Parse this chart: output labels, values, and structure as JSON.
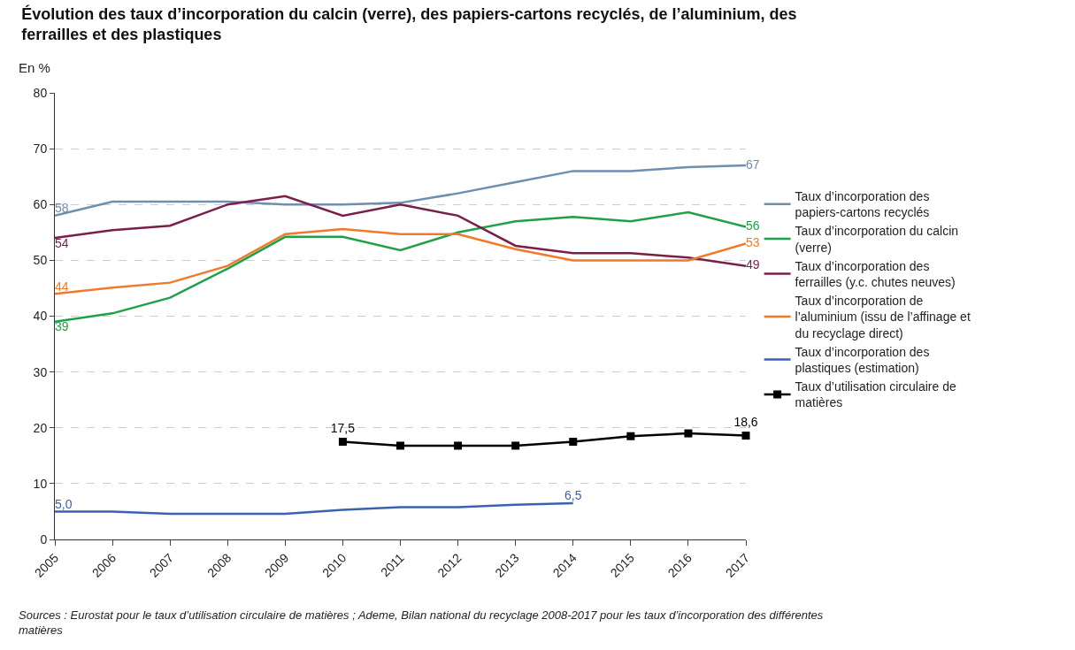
{
  "chart_data": {
    "type": "line",
    "title": "Évolution des taux d’incorporation du calcin (verre), des papiers-cartons recyclés, de l’aluminium, des ferrailles et des plastiques",
    "ylabel": "En %",
    "x": [
      2005,
      2006,
      2007,
      2008,
      2009,
      2010,
      2011,
      2012,
      2013,
      2014,
      2015,
      2016,
      2017
    ],
    "xlim": [
      2005,
      2017
    ],
    "xticks": [
      2005,
      2006,
      2007,
      2008,
      2009,
      2010,
      2011,
      2012,
      2013,
      2014,
      2015,
      2016,
      2017
    ],
    "ylim": [
      0,
      80
    ],
    "yticks": [
      0,
      10,
      20,
      30,
      40,
      50,
      60,
      70,
      80
    ],
    "grid": "y",
    "legend": "right",
    "line_style": "solid",
    "series": [
      {
        "name": "Taux d’incorporation des papiers-cartons recyclés",
        "color": "#6e8fb0",
        "marker": "none",
        "values": [
          58,
          60.5,
          60.5,
          60.5,
          60,
          60,
          60.3,
          62,
          64,
          66,
          66,
          66.7,
          67
        ],
        "value_labels": [
          "58",
          null,
          null,
          null,
          null,
          null,
          null,
          null,
          null,
          null,
          null,
          null,
          "67"
        ]
      },
      {
        "name": "Taux d’incorporation du calcin (verre)",
        "color": "#1fa049",
        "marker": "none",
        "values": [
          39,
          40.5,
          43.3,
          48.5,
          54.2,
          54.2,
          51.8,
          55,
          57,
          57.8,
          57,
          58.6,
          56
        ],
        "value_labels": [
          "39",
          null,
          null,
          null,
          null,
          null,
          null,
          null,
          null,
          null,
          null,
          null,
          "56"
        ]
      },
      {
        "name": "Taux d’incorporation des ferrailles (y.c. chutes neuves)",
        "color": "#7a1f4a",
        "marker": "none",
        "values": [
          54,
          55.4,
          56.2,
          60,
          61.5,
          58,
          60,
          58,
          52.6,
          51.3,
          51.3,
          50.5,
          49
        ],
        "value_labels": [
          "54",
          null,
          null,
          null,
          null,
          null,
          null,
          null,
          null,
          null,
          null,
          null,
          "49"
        ]
      },
      {
        "name": "Taux d’incorporation de l’aluminium (issu de l’affinage et du recyclage direct)",
        "color": "#f07a2a",
        "marker": "none",
        "values": [
          44,
          45.1,
          46,
          49,
          54.7,
          55.6,
          54.7,
          54.7,
          52,
          50,
          50,
          50,
          53
        ],
        "value_labels": [
          "44",
          null,
          null,
          null,
          null,
          null,
          null,
          null,
          null,
          null,
          null,
          null,
          "53"
        ]
      },
      {
        "name": "Taux d’incorporation des plastiques (estimation)",
        "color": "#3a62b0",
        "marker": "none",
        "values": [
          5.0,
          5.0,
          4.6,
          4.6,
          4.6,
          5.3,
          5.8,
          5.8,
          6.2,
          6.5,
          null,
          null,
          null
        ],
        "value_labels": [
          "5,0",
          null,
          null,
          null,
          null,
          null,
          null,
          null,
          null,
          "6,5",
          null,
          null,
          null
        ]
      },
      {
        "name": "Taux d’utilisation circulaire de matières",
        "color": "#000000",
        "marker": "square",
        "values": [
          null,
          null,
          null,
          null,
          null,
          17.5,
          16.8,
          16.8,
          16.8,
          17.5,
          18.5,
          19,
          18.6
        ],
        "value_labels": [
          null,
          null,
          null,
          null,
          null,
          "17,5",
          null,
          null,
          null,
          null,
          null,
          null,
          "18,6"
        ]
      }
    ],
    "annotations": [
      "Sources : Eurostat pour le taux d’utilisation circulaire de matières ; Ademe, Bilan national du recyclage 2008-2017 pour les taux d’incorporation des différentes matières"
    ]
  }
}
